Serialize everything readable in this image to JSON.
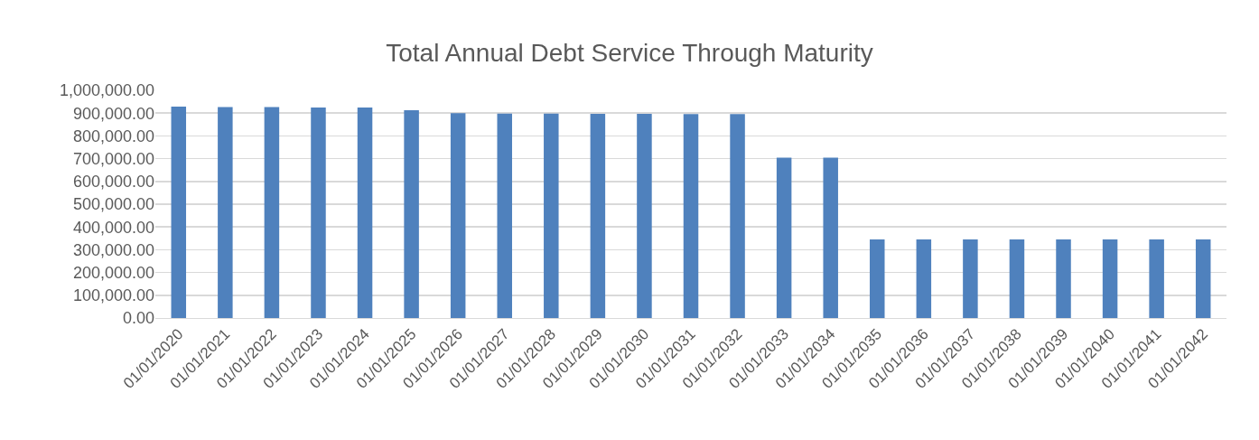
{
  "chart_data": {
    "type": "bar",
    "title": "Total Annual Debt Service Through Maturity",
    "categories": [
      "01/01/2020",
      "01/01/2021",
      "01/01/2022",
      "01/01/2023",
      "01/01/2024",
      "01/01/2025",
      "01/01/2026",
      "01/01/2027",
      "01/01/2028",
      "01/01/2029",
      "01/01/2030",
      "01/01/2031",
      "01/01/2032",
      "01/01/2033",
      "01/01/2034",
      "01/01/2035",
      "01/01/2036",
      "01/01/2037",
      "01/01/2038",
      "01/01/2039",
      "01/01/2040",
      "01/01/2041",
      "01/01/2042"
    ],
    "values": [
      929000,
      927000,
      927000,
      925000,
      925000,
      913000,
      900000,
      898000,
      898000,
      897000,
      897000,
      896000,
      896000,
      704000,
      704000,
      345000,
      345000,
      345000,
      345000,
      345000,
      345000,
      345000,
      345000
    ],
    "color": "#4f81bd",
    "ylim": [
      0,
      1000000
    ],
    "yticks": [
      {
        "value": 0,
        "label": "0.00"
      },
      {
        "value": 100000,
        "label": "100,000.00"
      },
      {
        "value": 200000,
        "label": "200,000.00"
      },
      {
        "value": 300000,
        "label": "300,000.00"
      },
      {
        "value": 400000,
        "label": "400,000.00"
      },
      {
        "value": 500000,
        "label": "500,000.00"
      },
      {
        "value": 600000,
        "label": "600,000.00"
      },
      {
        "value": 700000,
        "label": "700,000.00"
      },
      {
        "value": 800000,
        "label": "800,000.00"
      },
      {
        "value": 900000,
        "label": "900,000.00"
      },
      {
        "value": 1000000,
        "label": "1,000,000.00"
      }
    ],
    "grid": "y",
    "legend": false
  }
}
